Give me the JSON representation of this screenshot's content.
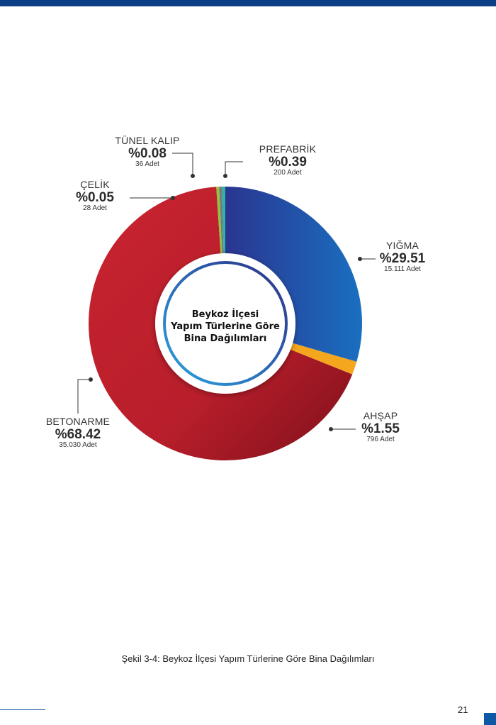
{
  "chart_data": {
    "type": "pie",
    "title": "Beykoz İlçesi Yapım Türlerine Göre Bina Dağılımları",
    "slices": [
      {
        "label": "YIĞMA",
        "percent_label": "%29.51",
        "percent": 29.51,
        "count_label": "15.111 Adet",
        "color": "#2a3590",
        "color2": "#1a6fc0"
      },
      {
        "label": "AHŞAP",
        "percent_label": "%1.55",
        "percent": 1.55,
        "count_label": "796 Adet",
        "color": "#f4a61f",
        "color2": "#f4a61f"
      },
      {
        "label": "BETONARME",
        "percent_label": "%68.42",
        "percent": 68.42,
        "count_label": "35.030 Adet",
        "color": "#c0232f",
        "color2": "#8e1420"
      },
      {
        "label": "ÇELİK",
        "percent_label": "%0.05",
        "percent": 0.05,
        "count_label": "28 Adet",
        "color": "#8dc63f",
        "color2": "#8dc63f"
      },
      {
        "label": "TÜNEL KALIP",
        "percent_label": "%0.08",
        "percent": 0.08,
        "count_label": "36 Adet",
        "color": "#7a7a7a",
        "color2": "#7a7a7a"
      },
      {
        "label": "PREFABRİK",
        "percent_label": "%0.39",
        "percent": 0.39,
        "count_label": "200 Adet",
        "color": "#2bb3a6",
        "color2": "#2bb3a6"
      }
    ]
  },
  "center_title_lines": [
    "Beykoz İlçesi",
    "Yapım Türlerine Göre",
    "Bina Dağılımları"
  ],
  "caption": "Şekil 3-4: Beykoz İlçesi Yapım Türlerine Göre Bina Dağılımları",
  "page_number": "21",
  "colors": {
    "header_bar": "#0c3f86",
    "ring_outer": "#2a8ed8",
    "ring_inner": "#2e2f86"
  }
}
